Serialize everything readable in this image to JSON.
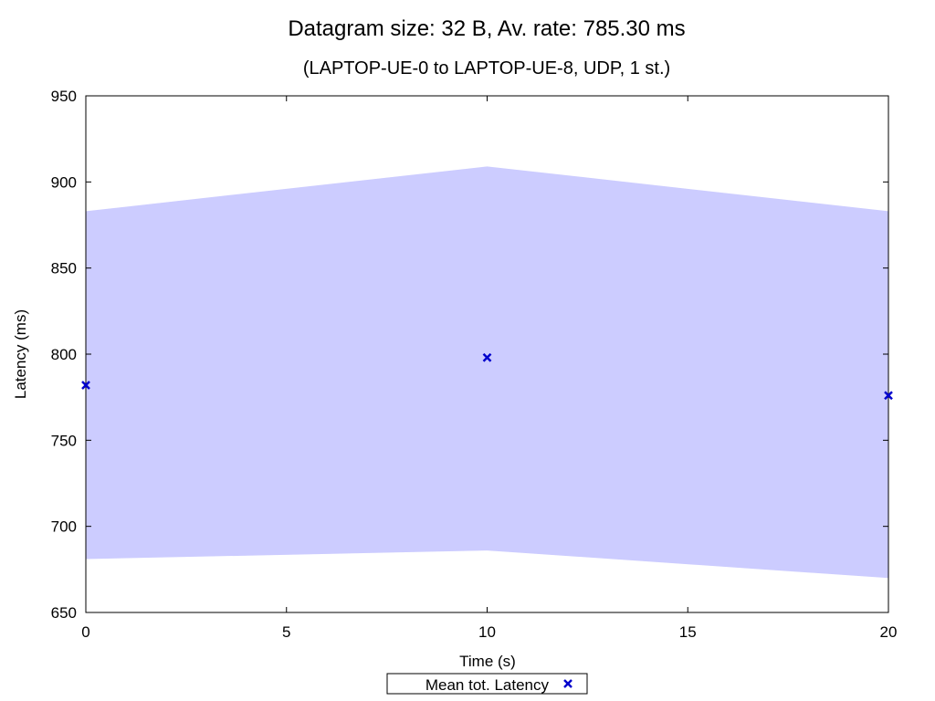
{
  "chart_data": {
    "type": "line",
    "title": "Datagram size: 32 B, Av. rate: 785.30 ms",
    "subtitle": "(LAPTOP-UE-0 to LAPTOP-UE-8, UDP, 1 st.)",
    "xlabel": "Time (s)",
    "ylabel": "Latency (ms)",
    "xlim": [
      0,
      20
    ],
    "ylim": [
      650,
      950
    ],
    "xticks": [
      0,
      5,
      10,
      15,
      20
    ],
    "yticks": [
      650,
      700,
      750,
      800,
      850,
      900,
      950
    ],
    "grid": false,
    "legend_position": "bottom-center",
    "series": [
      {
        "name": "Mean tot. Latency",
        "marker": "x",
        "color": "#0000cc",
        "x": [
          0,
          10,
          20
        ],
        "y": [
          782,
          798,
          776
        ]
      }
    ],
    "band": {
      "color": "#ccccff",
      "x": [
        0,
        10,
        20
      ],
      "upper": [
        883,
        909,
        883
      ],
      "lower": [
        681,
        686,
        670
      ]
    }
  }
}
